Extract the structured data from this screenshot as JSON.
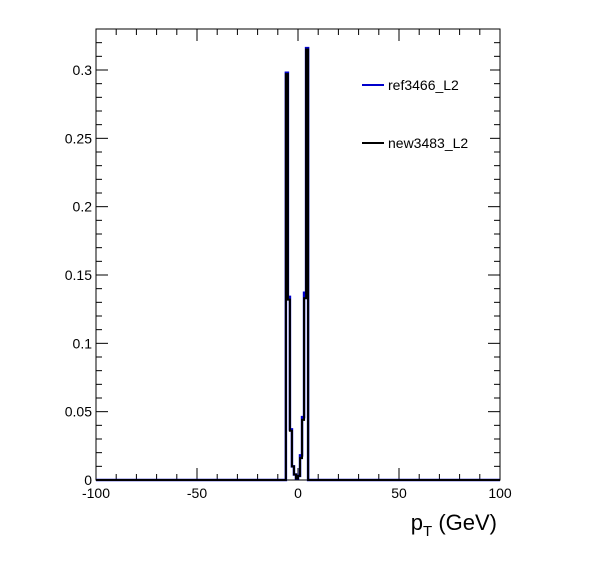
{
  "chart_data": {
    "type": "line",
    "title": "",
    "xlabel_main": "p",
    "xlabel_sub": "T",
    "xlabel_unit": " (GeV)",
    "ylabel": "",
    "xlim": [
      -100,
      100
    ],
    "ylim": [
      0,
      0.33
    ],
    "x_ticks": [
      -100,
      -50,
      0,
      50,
      100
    ],
    "x_tick_labels": [
      "-100",
      "-50",
      "0",
      "50",
      "100"
    ],
    "y_ticks": [
      0,
      0.05,
      0.1,
      0.15,
      0.2,
      0.25,
      0.3
    ],
    "y_tick_labels": [
      "0",
      "0.05",
      "0.1",
      "0.15",
      "0.2",
      "0.25",
      "0.3"
    ],
    "grid": false,
    "legend_position": "top-right",
    "bin_edges": [
      -6,
      -5,
      -4,
      -3,
      -2,
      -1,
      0,
      1,
      2,
      3,
      4,
      5,
      6
    ],
    "series": [
      {
        "name": "ref3466_L2",
        "color": "#0000cc",
        "values": [
          0.298,
          0.134,
          0.037,
          0.01,
          0.004,
          0.001,
          0.003,
          0.018,
          0.046,
          0.137,
          0.316,
          0
        ]
      },
      {
        "name": "new3483_L2",
        "color": "#000000",
        "values": [
          0.297,
          0.132,
          0.036,
          0.01,
          0.004,
          0.001,
          0.003,
          0.016,
          0.044,
          0.133,
          0.315,
          0
        ]
      }
    ]
  }
}
